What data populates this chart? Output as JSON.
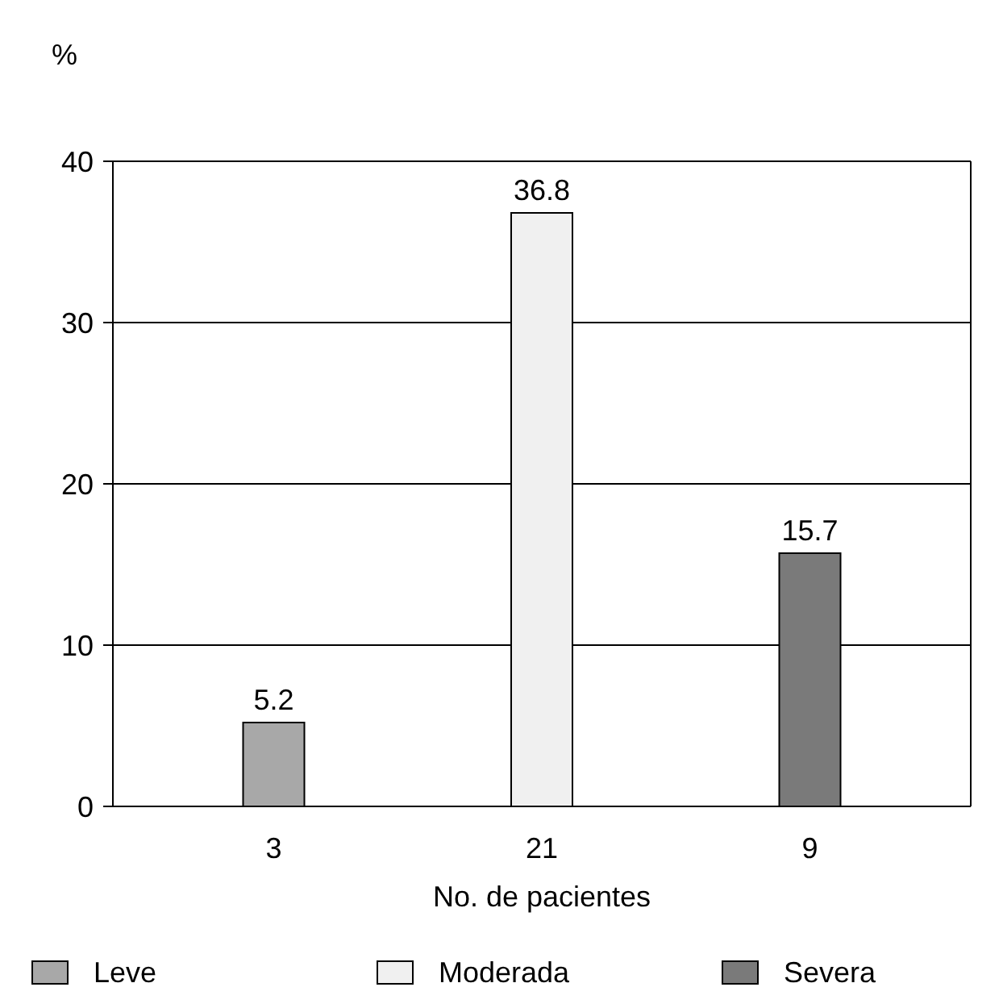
{
  "chart_data": {
    "type": "bar",
    "xlabel": "No. de pacientes",
    "ylabel": "%",
    "categories": [
      "3",
      "21",
      "9"
    ],
    "series": [
      {
        "name": "Leve",
        "color": "#a8a8a8",
        "values": [
          5.2,
          null,
          null
        ]
      },
      {
        "name": "Moderada",
        "color": "#f0f0f0",
        "values": [
          null,
          36.8,
          null
        ]
      },
      {
        "name": "Severa",
        "color": "#7a7a7a",
        "values": [
          null,
          null,
          15.7
        ]
      }
    ],
    "ylim": [
      0,
      40
    ],
    "yticks": [
      0,
      10,
      20,
      30,
      40
    ],
    "grid": "y",
    "data_labels": true,
    "legend": "bottom"
  }
}
